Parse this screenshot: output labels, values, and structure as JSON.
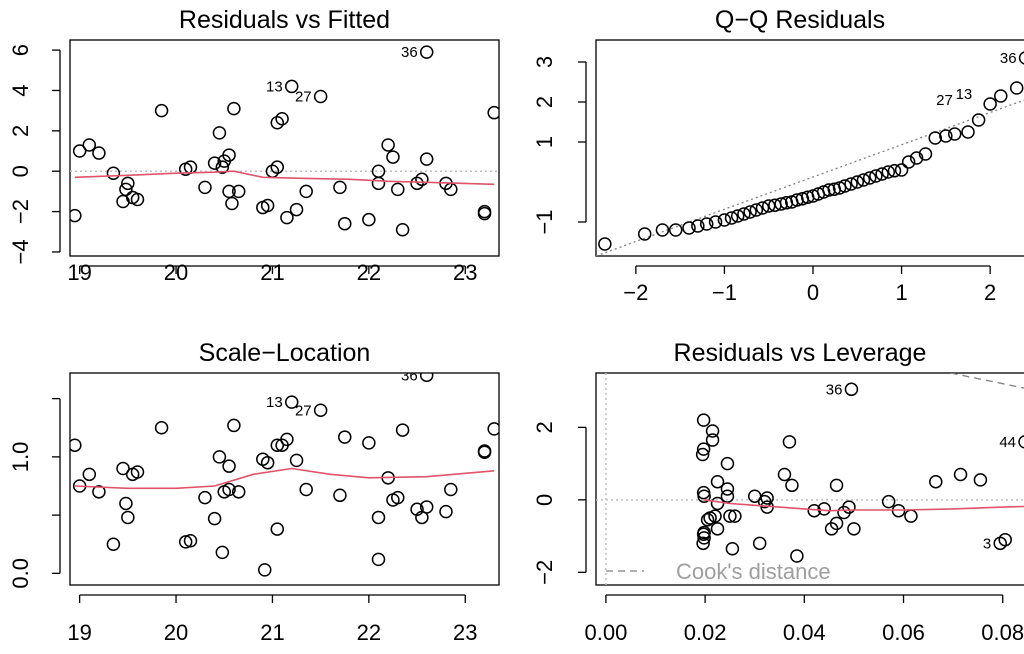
{
  "chart_data": [
    {
      "type": "scatter",
      "title": "Residuals vs Fitted",
      "xlabel": "",
      "ylabel": "",
      "xlim": [
        18.9,
        23.35
      ],
      "ylim": [
        -4.2,
        6.5
      ],
      "x_ticks": [
        "19",
        "20",
        "21",
        "22",
        "23"
      ],
      "x_tick_values": [
        19,
        20,
        21,
        22,
        23
      ],
      "y_ticks": [
        "−4",
        "−2",
        "0",
        "2",
        "4",
        "6"
      ],
      "y_tick_values": [
        -4,
        -2,
        0,
        2,
        4,
        6
      ],
      "ref_line": {
        "y": 0,
        "style": "dotted",
        "color": "#bebebe"
      },
      "points": [
        [
          18.95,
          -2.2
        ],
        [
          19.0,
          1.0
        ],
        [
          19.1,
          1.3
        ],
        [
          19.2,
          0.9
        ],
        [
          19.35,
          -0.1
        ],
        [
          19.45,
          -1.5
        ],
        [
          19.48,
          -0.9
        ],
        [
          19.5,
          -0.6
        ],
        [
          19.55,
          -1.3
        ],
        [
          19.6,
          -1.4
        ],
        [
          19.85,
          3.0
        ],
        [
          20.1,
          0.1
        ],
        [
          20.15,
          0.2
        ],
        [
          20.3,
          -0.8
        ],
        [
          20.4,
          0.4
        ],
        [
          20.45,
          1.9
        ],
        [
          20.48,
          0.2
        ],
        [
          20.5,
          0.5
        ],
        [
          20.55,
          0.8
        ],
        [
          20.55,
          -1.0
        ],
        [
          20.58,
          -1.6
        ],
        [
          20.6,
          3.1
        ],
        [
          20.65,
          -1.0
        ],
        [
          20.9,
          -1.8
        ],
        [
          20.95,
          -1.7
        ],
        [
          21.0,
          0.0
        ],
        [
          21.05,
          0.2
        ],
        [
          21.05,
          2.4
        ],
        [
          21.1,
          2.6
        ],
        [
          21.15,
          -2.3
        ],
        [
          21.2,
          4.2
        ],
        [
          21.25,
          -1.9
        ],
        [
          21.35,
          -1.0
        ],
        [
          21.5,
          3.7
        ],
        [
          21.7,
          -0.8
        ],
        [
          21.75,
          -2.6
        ],
        [
          22.0,
          -2.4
        ],
        [
          22.1,
          0.0
        ],
        [
          22.1,
          -0.6
        ],
        [
          22.2,
          1.3
        ],
        [
          22.25,
          0.7
        ],
        [
          22.3,
          -0.9
        ],
        [
          22.35,
          -2.9
        ],
        [
          22.5,
          -0.6
        ],
        [
          22.55,
          -0.4
        ],
        [
          22.6,
          0.6
        ],
        [
          22.6,
          5.9
        ],
        [
          22.8,
          -0.6
        ],
        [
          22.85,
          -0.9
        ],
        [
          23.2,
          -2.0
        ],
        [
          23.2,
          -2.1
        ],
        [
          23.3,
          2.9
        ]
      ],
      "smooth": [
        [
          18.95,
          -0.3
        ],
        [
          19.5,
          -0.2
        ],
        [
          20.0,
          -0.1
        ],
        [
          20.4,
          -0.05
        ],
        [
          20.6,
          0.0
        ],
        [
          20.9,
          -0.3
        ],
        [
          21.3,
          -0.35
        ],
        [
          21.8,
          -0.4
        ],
        [
          22.2,
          -0.5
        ],
        [
          22.6,
          -0.55
        ],
        [
          23.3,
          -0.65
        ]
      ],
      "annotations": [
        {
          "text": "36",
          "x": 22.6,
          "y": 5.9
        },
        {
          "text": "13",
          "x": 21.2,
          "y": 4.2
        },
        {
          "text": "27",
          "x": 21.5,
          "y": 3.7
        }
      ]
    },
    {
      "type": "scatter",
      "title": "Q−Q Residuals",
      "xlabel": "",
      "ylabel": "",
      "xlim": [
        -2.45,
        2.45
      ],
      "ylim": [
        -1.85,
        3.55
      ],
      "x_ticks": [
        "−2",
        "−1",
        "0",
        "1",
        "2"
      ],
      "x_tick_values": [
        -2,
        -1,
        0,
        1,
        2
      ],
      "y_ticks": [
        "−1",
        "1",
        "2",
        "3"
      ],
      "y_tick_values": [
        -1,
        1,
        2,
        3
      ],
      "ref_line": {
        "points": [
          [
            -2.45,
            -1.85
          ],
          [
            2.45,
            2.1
          ]
        ],
        "style": "dotted",
        "color": "#808080"
      },
      "points": [
        [
          -2.35,
          -1.55
        ],
        [
          -1.9,
          -1.3
        ],
        [
          -1.7,
          -1.2
        ],
        [
          -1.55,
          -1.2
        ],
        [
          -1.4,
          -1.15
        ],
        [
          -1.3,
          -1.1
        ],
        [
          -1.2,
          -1.05
        ],
        [
          -1.1,
          -1.0
        ],
        [
          -1.0,
          -0.95
        ],
        [
          -0.92,
          -0.9
        ],
        [
          -0.85,
          -0.85
        ],
        [
          -0.78,
          -0.8
        ],
        [
          -0.71,
          -0.75
        ],
        [
          -0.64,
          -0.7
        ],
        [
          -0.57,
          -0.65
        ],
        [
          -0.5,
          -0.6
        ],
        [
          -0.43,
          -0.58
        ],
        [
          -0.36,
          -0.55
        ],
        [
          -0.3,
          -0.52
        ],
        [
          -0.24,
          -0.5
        ],
        [
          -0.18,
          -0.45
        ],
        [
          -0.12,
          -0.42
        ],
        [
          -0.06,
          -0.38
        ],
        [
          0.0,
          -0.35
        ],
        [
          0.06,
          -0.3
        ],
        [
          0.12,
          -0.25
        ],
        [
          0.18,
          -0.2
        ],
        [
          0.24,
          -0.18
        ],
        [
          0.3,
          -0.15
        ],
        [
          0.36,
          -0.1
        ],
        [
          0.43,
          -0.05
        ],
        [
          0.5,
          0.0
        ],
        [
          0.57,
          0.05
        ],
        [
          0.64,
          0.1
        ],
        [
          0.71,
          0.15
        ],
        [
          0.78,
          0.2
        ],
        [
          0.85,
          0.25
        ],
        [
          0.92,
          0.28
        ],
        [
          1.0,
          0.3
        ],
        [
          1.08,
          0.5
        ],
        [
          1.17,
          0.6
        ],
        [
          1.27,
          0.7
        ],
        [
          1.38,
          1.1
        ],
        [
          1.5,
          1.15
        ],
        [
          1.6,
          1.2
        ],
        [
          1.75,
          1.25
        ],
        [
          1.87,
          1.55
        ],
        [
          2.0,
          1.95
        ],
        [
          2.12,
          2.15
        ],
        [
          2.3,
          2.35
        ],
        [
          2.4,
          3.1
        ]
      ],
      "annotations": [
        {
          "text": "36",
          "x": 2.4,
          "y": 3.1
        },
        {
          "text": "13",
          "x": 1.9,
          "y": 2.2
        },
        {
          "text": "27",
          "x": 1.68,
          "y": 2.05
        }
      ]
    },
    {
      "type": "scatter",
      "title": "Scale−Location",
      "xlabel": "",
      "ylabel": "",
      "xlim": [
        18.9,
        23.35
      ],
      "ylim": [
        -0.1,
        1.72
      ],
      "x_ticks": [
        "19",
        "20",
        "21",
        "22",
        "23"
      ],
      "x_tick_values": [
        19,
        20,
        21,
        22,
        23
      ],
      "y_ticks": [
        "0.0",
        "1.0"
      ],
      "y_tick_values": [
        0.0,
        1.0
      ],
      "minor_y_ticks": [
        0.5,
        1.5
      ],
      "points": [
        [
          18.95,
          1.1
        ],
        [
          19.0,
          0.75
        ],
        [
          19.1,
          0.85
        ],
        [
          19.2,
          0.7
        ],
        [
          19.35,
          0.25
        ],
        [
          19.45,
          0.9
        ],
        [
          19.48,
          0.6
        ],
        [
          19.5,
          0.48
        ],
        [
          19.55,
          0.85
        ],
        [
          19.6,
          0.87
        ],
        [
          19.85,
          1.25
        ],
        [
          20.1,
          0.27
        ],
        [
          20.15,
          0.28
        ],
        [
          20.3,
          0.65
        ],
        [
          20.4,
          0.47
        ],
        [
          20.45,
          1.0
        ],
        [
          20.48,
          0.18
        ],
        [
          20.5,
          0.7
        ],
        [
          20.55,
          0.72
        ],
        [
          20.55,
          0.92
        ],
        [
          20.6,
          1.27
        ],
        [
          20.65,
          0.7
        ],
        [
          20.9,
          0.98
        ],
        [
          20.92,
          0.03
        ],
        [
          20.95,
          0.95
        ],
        [
          21.05,
          0.38
        ],
        [
          21.05,
          1.1
        ],
        [
          21.1,
          1.1
        ],
        [
          21.15,
          1.15
        ],
        [
          21.2,
          1.47
        ],
        [
          21.25,
          0.97
        ],
        [
          21.35,
          0.72
        ],
        [
          21.5,
          1.4
        ],
        [
          21.7,
          0.67
        ],
        [
          21.75,
          1.17
        ],
        [
          22.0,
          1.12
        ],
        [
          22.1,
          0.48
        ],
        [
          22.1,
          0.12
        ],
        [
          22.2,
          0.82
        ],
        [
          22.25,
          0.63
        ],
        [
          22.3,
          0.65
        ],
        [
          22.35,
          1.23
        ],
        [
          22.5,
          0.55
        ],
        [
          22.55,
          0.48
        ],
        [
          22.6,
          0.57
        ],
        [
          22.6,
          1.7
        ],
        [
          22.8,
          0.53
        ],
        [
          22.85,
          0.72
        ],
        [
          23.2,
          1.04
        ],
        [
          23.2,
          1.05
        ],
        [
          23.3,
          1.24
        ]
      ],
      "smooth": [
        [
          18.95,
          0.75
        ],
        [
          19.5,
          0.73
        ],
        [
          20.0,
          0.73
        ],
        [
          20.4,
          0.75
        ],
        [
          20.8,
          0.85
        ],
        [
          21.2,
          0.9
        ],
        [
          21.6,
          0.85
        ],
        [
          22.0,
          0.82
        ],
        [
          22.6,
          0.83
        ],
        [
          23.3,
          0.88
        ]
      ],
      "annotations": [
        {
          "text": "36",
          "x": 22.6,
          "y": 1.7
        },
        {
          "text": "13",
          "x": 21.2,
          "y": 1.47
        },
        {
          "text": "27",
          "x": 21.5,
          "y": 1.4
        }
      ]
    },
    {
      "type": "scatter",
      "title": "Residuals vs Leverage",
      "xlabel": "",
      "ylabel": "",
      "xlim": [
        -0.002,
        0.0855
      ],
      "ylim": [
        -2.35,
        3.5
      ],
      "x_ticks": [
        "0.00",
        "0.02",
        "0.04",
        "0.06",
        "0.08"
      ],
      "x_tick_values": [
        0.0,
        0.02,
        0.04,
        0.06,
        0.08
      ],
      "y_ticks": [
        "−2",
        "0",
        "2"
      ],
      "y_tick_values": [
        -2,
        0,
        2
      ],
      "legend": {
        "text": "Cook's distance",
        "position": "bottom-left"
      },
      "points": [
        [
          0.0197,
          2.2
        ],
        [
          0.0197,
          1.4
        ],
        [
          0.0195,
          1.25
        ],
        [
          0.0197,
          0.2
        ],
        [
          0.0198,
          0.1
        ],
        [
          0.0198,
          -0.9
        ],
        [
          0.0197,
          -0.95
        ],
        [
          0.0198,
          -1.05
        ],
        [
          0.0196,
          -1.2
        ],
        [
          0.0215,
          1.9
        ],
        [
          0.0215,
          1.65
        ],
        [
          0.021,
          -0.5
        ],
        [
          0.0205,
          -0.55
        ],
        [
          0.022,
          -0.45
        ],
        [
          0.0225,
          0.5
        ],
        [
          0.0225,
          -0.1
        ],
        [
          0.0225,
          -0.8
        ],
        [
          0.0245,
          1.0
        ],
        [
          0.0245,
          0.3
        ],
        [
          0.0245,
          0.1
        ],
        [
          0.025,
          -0.45
        ],
        [
          0.026,
          -0.45
        ],
        [
          0.0255,
          -1.35
        ],
        [
          0.03,
          0.1
        ],
        [
          0.031,
          -1.2
        ],
        [
          0.032,
          -0.05
        ],
        [
          0.0325,
          0.05
        ],
        [
          0.0325,
          -0.2
        ],
        [
          0.036,
          0.7
        ],
        [
          0.037,
          1.6
        ],
        [
          0.0375,
          0.4
        ],
        [
          0.0385,
          -1.55
        ],
        [
          0.042,
          -0.3
        ],
        [
          0.044,
          -0.25
        ],
        [
          0.0455,
          -0.8
        ],
        [
          0.0465,
          0.4
        ],
        [
          0.0465,
          -0.65
        ],
        [
          0.048,
          -0.35
        ],
        [
          0.049,
          -0.2
        ],
        [
          0.05,
          -0.8
        ],
        [
          0.057,
          -0.05
        ],
        [
          0.059,
          -0.3
        ],
        [
          0.0615,
          -0.45
        ],
        [
          0.0665,
          0.5
        ],
        [
          0.0715,
          0.7
        ],
        [
          0.0755,
          0.55
        ],
        [
          0.0795,
          -1.2
        ],
        [
          0.0805,
          -1.1
        ],
        [
          0.0495,
          3.05
        ],
        [
          0.0845,
          1.6
        ]
      ],
      "smooth": [
        [
          0.0197,
          0.0
        ],
        [
          0.025,
          -0.1
        ],
        [
          0.03,
          -0.15
        ],
        [
          0.035,
          -0.2
        ],
        [
          0.04,
          -0.25
        ],
        [
          0.045,
          -0.3
        ],
        [
          0.05,
          -0.28
        ],
        [
          0.055,
          -0.28
        ],
        [
          0.06,
          -0.28
        ],
        [
          0.07,
          -0.25
        ],
        [
          0.08,
          -0.2
        ],
        [
          0.085,
          -0.18
        ]
      ],
      "cook_line": [
        [
          0.0695,
          3.5
        ],
        [
          0.0855,
          3.05
        ]
      ],
      "annotations": [
        {
          "text": "36",
          "x": 0.0495,
          "y": 3.05
        },
        {
          "text": "44",
          "x": 0.0845,
          "y": 1.6
        },
        {
          "text": "3",
          "x": 0.0795,
          "y": -1.2
        }
      ]
    }
  ]
}
